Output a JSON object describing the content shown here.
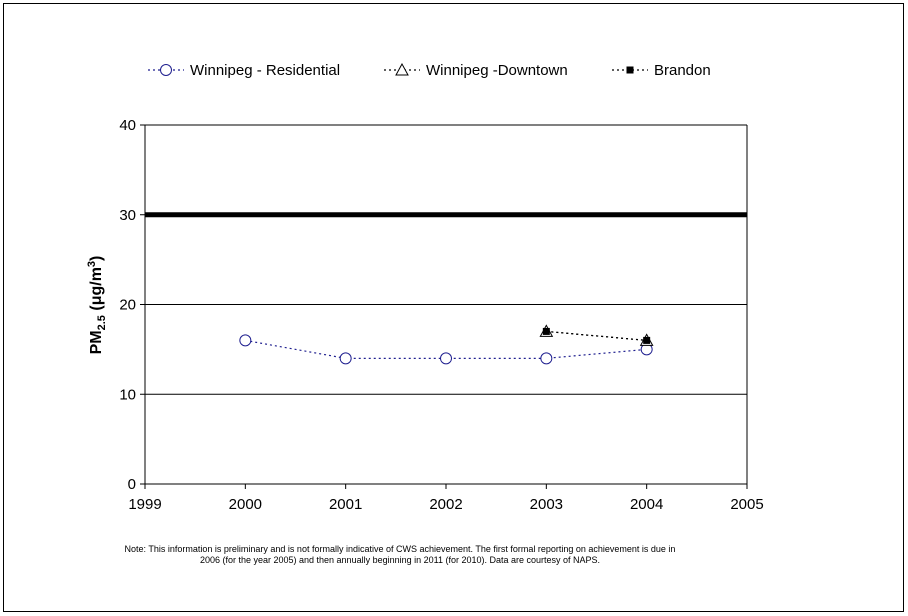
{
  "chart_data": {
    "type": "line",
    "title": "",
    "xlabel": "",
    "ylabel": {
      "main": "PM",
      "sub": "2.5",
      "unit_prefix": " (μg/m",
      "unit_sup": "3",
      "unit_suffix": ")"
    },
    "xlim": [
      1999,
      2005
    ],
    "ylim": [
      0,
      40
    ],
    "xticks": [
      "1999",
      "2000",
      "2001",
      "2002",
      "2003",
      "2004",
      "2005"
    ],
    "yticks": [
      "0",
      "10",
      "20",
      "30",
      "40"
    ],
    "grid": true,
    "legend_position": "top",
    "reference_line": {
      "value": 30,
      "color": "#000000"
    },
    "series": [
      {
        "name": "Winnipeg - Residential",
        "marker": "circle",
        "color": "#1f1f8f",
        "x": [
          2000,
          2001,
          2002,
          2003,
          2004
        ],
        "y": [
          16,
          14,
          14,
          14,
          15
        ]
      },
      {
        "name": "Winnipeg -Downtown",
        "marker": "triangle",
        "color": "#000000",
        "x": [
          2003,
          2004
        ],
        "y": [
          17,
          16
        ]
      },
      {
        "name": "Brandon",
        "marker": "square",
        "color": "#000000",
        "x": [
          2003,
          2004
        ],
        "y": [
          17,
          16
        ]
      }
    ]
  },
  "note": "Note: This information is preliminary and is not formally indicative of CWS achievement.  The first formal reporting on achievement is due in 2006 (for the year 2005) and then annually beginning in 2011 (for 2010).  Data are courtesy of NAPS."
}
